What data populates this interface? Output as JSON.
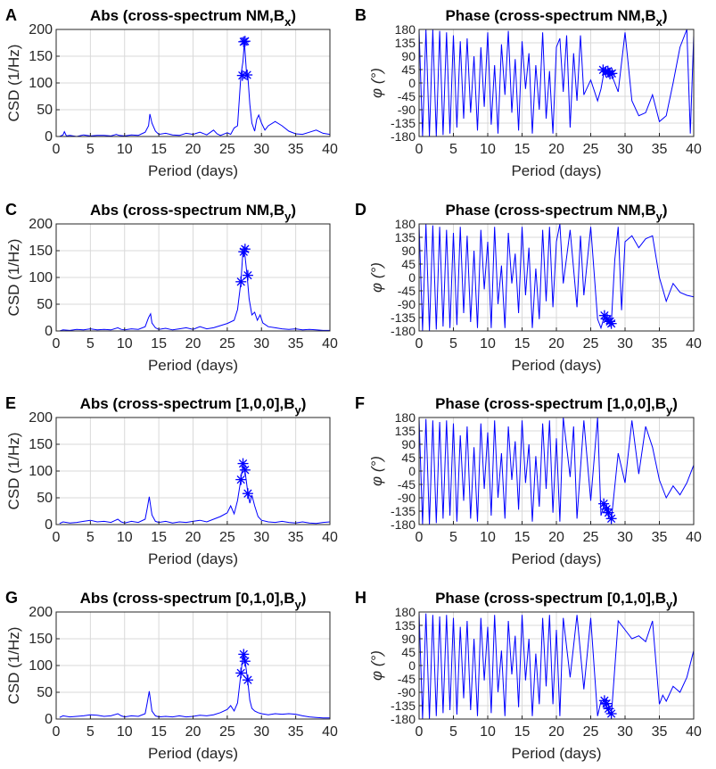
{
  "figure": {
    "line_color": "#0000ff",
    "grid_color": "#d9d9d9",
    "axis_color": "#262626"
  },
  "chart_data": [
    {
      "panel_letter": "A",
      "type": "line",
      "title": "Abs (cross-spectrum NM,B",
      "title_subscript": "x",
      "title_suffix": ")",
      "xlabel": "Period (days)",
      "ylabel": "CSD (1/Hz)",
      "xlim": [
        0,
        40
      ],
      "ylim": [
        0,
        200
      ],
      "xticks": [
        0,
        5,
        10,
        15,
        20,
        25,
        30,
        35,
        40
      ],
      "yticks": [
        0,
        50,
        100,
        150,
        200
      ],
      "x": [
        0.5,
        1,
        1.2,
        1.5,
        2,
        3,
        4,
        5,
        6,
        7,
        8,
        8.8,
        9.2,
        10,
        11,
        12,
        12.5,
        13,
        13.5,
        13.7,
        14,
        14.5,
        15,
        16,
        17,
        18,
        19,
        20,
        21,
        22,
        23,
        23.5,
        24,
        25,
        25.5,
        26,
        26.5,
        27,
        27.3,
        27.5,
        27.8,
        28,
        28.3,
        28.6,
        29,
        29.3,
        29.6,
        30,
        30.5,
        31,
        32,
        33,
        34,
        35,
        36,
        37,
        38,
        39,
        40
      ],
      "y": [
        0,
        3,
        9,
        1,
        2,
        0,
        3,
        1,
        2,
        2,
        1,
        4,
        2,
        1,
        3,
        2,
        5,
        8,
        20,
        42,
        25,
        10,
        4,
        6,
        3,
        2,
        6,
        4,
        8,
        3,
        12,
        5,
        2,
        7,
        4,
        16,
        20,
        115,
        140,
        177,
        120,
        114,
        60,
        25,
        10,
        32,
        40,
        25,
        12,
        20,
        28,
        20,
        10,
        5,
        4,
        8,
        12,
        6,
        4
      ],
      "markers": [
        [
          27.2,
          114
        ],
        [
          27.4,
          177
        ],
        [
          27.6,
          178
        ],
        [
          27.9,
          115
        ]
      ]
    },
    {
      "panel_letter": "B",
      "type": "line",
      "title": "Phase (cross-spectrum NM,B",
      "title_subscript": "x",
      "title_suffix": ")",
      "xlabel": "Period (days)",
      "ylabel": "φ (°)",
      "xlim": [
        0,
        40
      ],
      "ylim": [
        -180,
        180
      ],
      "xticks": [
        0,
        5,
        10,
        15,
        20,
        25,
        30,
        35,
        40
      ],
      "yticks": [
        -180,
        -135,
        -90,
        -45,
        0,
        45,
        90,
        135,
        180
      ],
      "x": [
        0,
        0.5,
        1,
        1.5,
        2,
        2.5,
        3,
        3.5,
        4,
        4.5,
        5,
        5.5,
        6,
        6.5,
        7,
        7.5,
        8,
        8.5,
        9,
        9.5,
        10,
        10.5,
        11,
        11.5,
        12,
        12.5,
        13,
        13.5,
        14,
        14.5,
        15,
        15.5,
        16,
        16.5,
        17,
        17.5,
        18,
        18.5,
        19,
        19.5,
        20,
        20.5,
        21,
        21.5,
        22,
        22.5,
        23,
        23.5,
        24,
        25,
        26,
        26.5,
        27,
        27.5,
        28,
        29,
        30,
        31,
        32,
        33,
        34,
        35,
        36,
        37,
        38,
        39,
        39.5,
        40
      ],
      "y": [
        180,
        -180,
        180,
        -180,
        180,
        -180,
        175,
        -175,
        170,
        -170,
        160,
        -150,
        140,
        -120,
        150,
        -100,
        90,
        -160,
        120,
        -80,
        170,
        -140,
        60,
        -170,
        130,
        -40,
        175,
        -100,
        80,
        -160,
        140,
        -20,
        100,
        -170,
        60,
        -90,
        170,
        -120,
        40,
        -170,
        120,
        150,
        -30,
        160,
        -150,
        100,
        -60,
        160,
        -40,
        10,
        -60,
        -20,
        45,
        40,
        30,
        -30,
        170,
        -60,
        -110,
        -100,
        -40,
        -130,
        -110,
        0,
        120,
        180,
        -170,
        160
      ],
      "markers": [
        [
          26.8,
          44
        ],
        [
          27.2,
          38
        ],
        [
          27.5,
          40
        ],
        [
          27.8,
          30
        ],
        [
          28.1,
          32
        ]
      ]
    },
    {
      "panel_letter": "C",
      "type": "line",
      "title": "Abs (cross-spectrum NM,B",
      "title_subscript": "y",
      "title_suffix": ")",
      "xlabel": "Period (days)",
      "ylabel": "CSD (1/Hz)",
      "xlim": [
        0,
        40
      ],
      "ylim": [
        0,
        200
      ],
      "xticks": [
        0,
        5,
        10,
        15,
        20,
        25,
        30,
        35,
        40
      ],
      "yticks": [
        0,
        50,
        100,
        150,
        200
      ],
      "x": [
        0.5,
        1,
        2,
        3,
        4,
        5,
        6,
        7,
        8,
        9,
        9.5,
        10,
        11,
        12,
        13,
        13.5,
        13.8,
        14,
        14.5,
        15,
        16,
        17,
        18,
        19,
        20,
        21,
        22,
        23,
        24,
        25,
        26,
        26.5,
        27,
        27.3,
        27.6,
        27.9,
        28.2,
        28.6,
        29,
        29.4,
        29.8,
        30.2,
        31,
        32,
        33,
        34,
        35,
        36,
        37,
        38,
        39,
        40
      ],
      "y": [
        0,
        2,
        1,
        3,
        2,
        4,
        2,
        3,
        2,
        6,
        3,
        2,
        4,
        3,
        8,
        25,
        32,
        15,
        6,
        3,
        5,
        2,
        4,
        6,
        3,
        8,
        4,
        6,
        10,
        14,
        20,
        40,
        92,
        150,
        140,
        104,
        60,
        30,
        35,
        20,
        30,
        15,
        8,
        6,
        4,
        3,
        4,
        2,
        3,
        2,
        1,
        1
      ],
      "markers": [
        [
          27.0,
          92
        ],
        [
          27.4,
          148
        ],
        [
          27.6,
          153
        ],
        [
          28.0,
          104
        ]
      ]
    },
    {
      "panel_letter": "D",
      "type": "line",
      "title": "Phase (cross-spectrum NM,B",
      "title_subscript": "y",
      "title_suffix": ")",
      "xlabel": "Period (days)",
      "ylabel": "φ (°)",
      "xlim": [
        0,
        40
      ],
      "ylim": [
        -180,
        180
      ],
      "xticks": [
        0,
        5,
        10,
        15,
        20,
        25,
        30,
        35,
        40
      ],
      "yticks": [
        -180,
        -135,
        -90,
        -45,
        0,
        45,
        90,
        135,
        180
      ],
      "x": [
        0,
        0.5,
        1,
        1.5,
        2,
        2.5,
        3,
        3.5,
        4,
        4.5,
        5,
        5.5,
        6,
        6.5,
        7,
        7.5,
        8,
        8.5,
        9,
        9.5,
        10,
        10.5,
        11,
        11.5,
        12,
        12.5,
        13,
        13.5,
        14,
        14.5,
        15,
        15.5,
        16,
        16.5,
        17,
        17.5,
        18,
        18.5,
        19,
        19.5,
        20,
        20.5,
        21,
        22,
        23,
        23.5,
        24,
        25,
        26,
        26.5,
        27,
        27.5,
        28,
        28.5,
        29,
        29.5,
        30,
        31,
        32,
        33,
        34,
        35,
        36,
        37,
        38,
        39,
        40
      ],
      "y": [
        180,
        -180,
        180,
        -180,
        175,
        -175,
        170,
        -165,
        160,
        -170,
        150,
        -160,
        170,
        -120,
        140,
        -150,
        90,
        -170,
        160,
        -40,
        120,
        -170,
        170,
        -90,
        40,
        -170,
        150,
        -20,
        80,
        -120,
        170,
        -60,
        100,
        -170,
        30,
        -140,
        160,
        -80,
        170,
        -100,
        120,
        180,
        -20,
        160,
        -100,
        140,
        -60,
        170,
        -140,
        -170,
        -130,
        -150,
        -155,
        60,
        170,
        -110,
        120,
        140,
        100,
        130,
        140,
        0,
        -80,
        -20,
        -50,
        -60,
        -65
      ],
      "markers": [
        [
          27.0,
          -128
        ],
        [
          27.4,
          -140
        ],
        [
          27.8,
          -148
        ],
        [
          28.0,
          -155
        ]
      ]
    },
    {
      "panel_letter": "E",
      "type": "line",
      "title": "Abs (cross-spectrum [1,0,0],B",
      "title_subscript": "y",
      "title_suffix": ")",
      "xlabel": "Period (days)",
      "ylabel": "CSD (1/Hz)",
      "xlim": [
        0,
        40
      ],
      "ylim": [
        0,
        200
      ],
      "xticks": [
        0,
        5,
        10,
        15,
        20,
        25,
        30,
        35,
        40
      ],
      "yticks": [
        0,
        50,
        100,
        150,
        200
      ],
      "x": [
        0.5,
        1,
        2,
        3,
        4,
        5,
        6,
        7,
        8,
        9,
        9.5,
        10,
        11,
        12,
        13,
        13.3,
        13.6,
        14,
        14.5,
        15,
        16,
        17,
        18,
        19,
        20,
        21,
        22,
        23,
        24,
        25,
        25.5,
        26,
        26.5,
        27,
        27.3,
        27.6,
        28,
        28.3,
        28.6,
        29,
        29.5,
        30,
        31,
        32,
        33,
        34,
        35,
        36,
        37,
        38,
        39,
        40
      ],
      "y": [
        2,
        5,
        3,
        4,
        6,
        8,
        5,
        6,
        4,
        10,
        5,
        3,
        6,
        4,
        10,
        30,
        52,
        18,
        6,
        4,
        6,
        3,
        5,
        4,
        6,
        8,
        5,
        10,
        15,
        22,
        35,
        20,
        45,
        85,
        112,
        100,
        60,
        40,
        55,
        35,
        15,
        8,
        5,
        4,
        6,
        4,
        3,
        5,
        3,
        2,
        4,
        5
      ],
      "markers": [
        [
          27.0,
          84
        ],
        [
          27.3,
          114
        ],
        [
          27.6,
          102
        ],
        [
          28.0,
          58
        ]
      ]
    },
    {
      "panel_letter": "F",
      "type": "line",
      "title": "Phase (cross-spectrum [1,0,0],B",
      "title_subscript": "y",
      "title_suffix": ")",
      "xlabel": "Period (days)",
      "ylabel": "φ (°)",
      "xlim": [
        0,
        40
      ],
      "ylim": [
        -180,
        180
      ],
      "xticks": [
        0,
        5,
        10,
        15,
        20,
        25,
        30,
        35,
        40
      ],
      "yticks": [
        -180,
        -135,
        -90,
        -45,
        0,
        45,
        90,
        135,
        180
      ],
      "x": [
        0,
        0.5,
        1,
        1.5,
        2,
        2.5,
        3,
        3.5,
        4,
        4.5,
        5,
        5.5,
        6,
        6.5,
        7,
        7.5,
        8,
        8.5,
        9,
        9.5,
        10,
        10.5,
        11,
        11.5,
        12,
        12.5,
        13,
        13.5,
        14,
        14.5,
        15,
        15.5,
        16,
        16.5,
        17,
        17.5,
        18,
        18.5,
        19,
        19.5,
        20,
        20.5,
        21,
        22,
        22.5,
        23,
        24,
        25,
        26,
        26.5,
        27,
        27.5,
        28,
        29,
        30,
        31,
        32,
        33,
        34,
        35,
        36,
        37,
        38,
        39,
        40
      ],
      "y": [
        180,
        -180,
        175,
        -180,
        170,
        -175,
        165,
        -160,
        170,
        -150,
        160,
        -170,
        120,
        -100,
        150,
        -160,
        80,
        -170,
        160,
        -60,
        130,
        -150,
        170,
        -90,
        60,
        -160,
        150,
        -30,
        100,
        -130,
        170,
        -40,
        90,
        -170,
        50,
        -120,
        160,
        -60,
        170,
        -140,
        110,
        -170,
        180,
        -20,
        150,
        -160,
        170,
        -100,
        180,
        -150,
        -110,
        -140,
        -165,
        60,
        -40,
        170,
        -10,
        150,
        80,
        -30,
        -90,
        -50,
        -80,
        -40,
        20
      ],
      "markers": [
        [
          26.9,
          -110
        ],
        [
          27.3,
          -128
        ],
        [
          27.6,
          -140
        ],
        [
          28.0,
          -160
        ]
      ]
    },
    {
      "panel_letter": "G",
      "type": "line",
      "title": "Abs (cross-spectrum [0,1,0],B",
      "title_subscript": "y",
      "title_suffix": ")",
      "xlabel": "Period (days)",
      "ylabel": "CSD (1/Hz)",
      "xlim": [
        0,
        40
      ],
      "ylim": [
        0,
        200
      ],
      "xticks": [
        0,
        5,
        10,
        15,
        20,
        25,
        30,
        35,
        40
      ],
      "yticks": [
        0,
        50,
        100,
        150,
        200
      ],
      "x": [
        0.5,
        1,
        2,
        3,
        4,
        5,
        6,
        7,
        8,
        9,
        9.5,
        10,
        11,
        12,
        13,
        13.3,
        13.6,
        14,
        14.5,
        15,
        16,
        17,
        18,
        19,
        20,
        21,
        22,
        23,
        24,
        25,
        25.5,
        26,
        26.5,
        27,
        27.3,
        27.6,
        28,
        28.3,
        28.6,
        29,
        29.5,
        30,
        31,
        32,
        33,
        34,
        35,
        36,
        37,
        38,
        39,
        40
      ],
      "y": [
        3,
        6,
        4,
        5,
        6,
        8,
        7,
        5,
        6,
        10,
        6,
        4,
        6,
        5,
        10,
        30,
        52,
        15,
        6,
        4,
        5,
        4,
        6,
        4,
        5,
        7,
        6,
        8,
        12,
        18,
        25,
        15,
        30,
        85,
        120,
        110,
        70,
        35,
        20,
        15,
        12,
        10,
        8,
        10,
        9,
        10,
        9,
        6,
        4,
        3,
        2,
        2
      ],
      "markers": [
        [
          27.0,
          86
        ],
        [
          27.4,
          121
        ],
        [
          27.6,
          108
        ],
        [
          28.0,
          73
        ]
      ]
    },
    {
      "panel_letter": "H",
      "type": "line",
      "title": "Phase (cross-spectrum [0,1,0],B",
      "title_subscript": "y",
      "title_suffix": ")",
      "xlabel": "Period (days)",
      "ylabel": "φ (°)",
      "xlim": [
        0,
        40
      ],
      "ylim": [
        -180,
        180
      ],
      "xticks": [
        0,
        5,
        10,
        15,
        20,
        25,
        30,
        35,
        40
      ],
      "yticks": [
        -180,
        -135,
        -90,
        -45,
        0,
        45,
        90,
        135,
        180
      ],
      "x": [
        0,
        0.5,
        1,
        1.5,
        2,
        2.5,
        3,
        3.5,
        4,
        4.5,
        5,
        5.5,
        6,
        6.5,
        7,
        7.5,
        8,
        8.5,
        9,
        9.5,
        10,
        10.5,
        11,
        11.5,
        12,
        12.5,
        13,
        13.5,
        14,
        14.5,
        15,
        15.5,
        16,
        16.5,
        17,
        17.5,
        18,
        18.5,
        19,
        19.5,
        20,
        20.5,
        21,
        22,
        23,
        24,
        25,
        26,
        26.5,
        27,
        27.5,
        28,
        29,
        30,
        31,
        32,
        33,
        34,
        35,
        35.5,
        36,
        37,
        38,
        39,
        40
      ],
      "y": [
        180,
        -180,
        175,
        -180,
        170,
        -170,
        165,
        -160,
        170,
        -150,
        160,
        -165,
        130,
        -110,
        150,
        -150,
        90,
        -170,
        160,
        -50,
        130,
        -160,
        170,
        -90,
        50,
        -170,
        150,
        -30,
        100,
        -140,
        170,
        -50,
        90,
        -170,
        40,
        -130,
        160,
        -70,
        170,
        -130,
        120,
        -170,
        160,
        -40,
        170,
        -80,
        160,
        -170,
        -120,
        -140,
        -150,
        -170,
        150,
        120,
        90,
        100,
        80,
        150,
        -130,
        -100,
        -120,
        -70,
        -90,
        -40,
        50
      ],
      "markers": [
        [
          27.0,
          -118
        ],
        [
          27.3,
          -128
        ],
        [
          27.6,
          -145
        ],
        [
          28.0,
          -162
        ]
      ]
    }
  ]
}
